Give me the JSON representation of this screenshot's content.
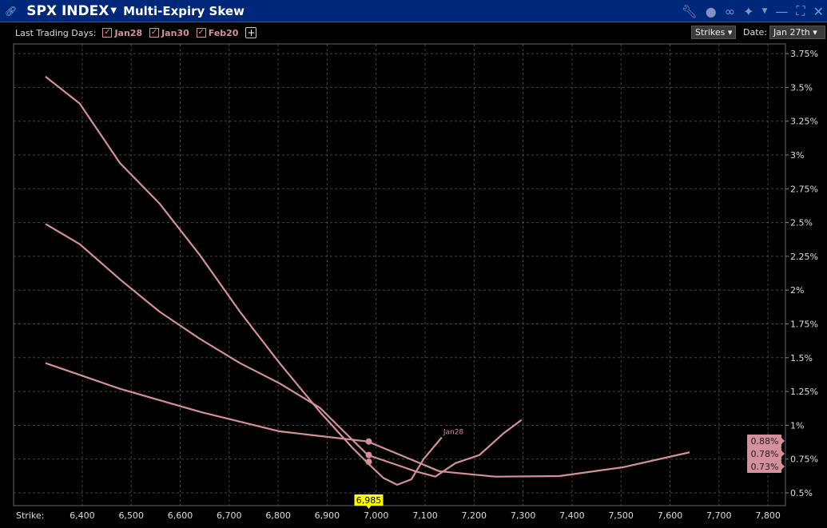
{
  "header": {
    "security": "SPX INDEX",
    "title": "Multi-Expiry Skew"
  },
  "toolbar": {
    "last_trading_days_label": "Last Trading Days:",
    "expiries": [
      "Jan28",
      "Jan30",
      "Feb20"
    ],
    "strikes_button": "Strikes",
    "date_label": "Date:",
    "date_value": "Jan 27th"
  },
  "colors": {
    "titlebar": "#00287a",
    "series": "#d4909c",
    "cursor_label": "#ffff00"
  },
  "icons": [
    "link-icon",
    "wrench-icon",
    "chat-icon",
    "chain-icon",
    "pin-icon",
    "minimize-icon",
    "maximize-icon",
    "close-icon"
  ],
  "chart_data": {
    "type": "line",
    "xlabel": "Strike:",
    "x_ticks": [
      "6,400",
      "6,500",
      "6,600",
      "6,700",
      "6,800",
      "6,900",
      "7,000",
      "7,100",
      "7,200",
      "7,300",
      "7,400",
      "7,500",
      "7,600",
      "7,700",
      "7,800"
    ],
    "y_ticks": [
      "0.5%",
      "0.75%",
      "1%",
      "1.25%",
      "1.5%",
      "1.75%",
      "2%",
      "2.25%",
      "2.5%",
      "2.75%",
      "3%",
      "3.25%",
      "3.5%",
      "3.75%"
    ],
    "xlim": [
      6300,
      7850
    ],
    "ylim": [
      0.4,
      3.85
    ],
    "grid": true,
    "cursor_strike": "6,985",
    "series": [
      {
        "name": "Jan28",
        "label": "Jan28",
        "marker_value": 0.73,
        "marker_label": "0.73%",
        "x": [
          6325,
          6395,
          6477,
          6558,
          6640,
          6722,
          6803,
          6885,
          6950,
          6983,
          7015,
          7043,
          7072,
          7097,
          7134
        ],
        "y": [
          3.58,
          3.38,
          2.94,
          2.64,
          2.26,
          1.84,
          1.46,
          1.1,
          0.84,
          0.72,
          0.61,
          0.56,
          0.6,
          0.75,
          0.91
        ]
      },
      {
        "name": "Jan30",
        "marker_value": 0.78,
        "marker_label": "0.78%",
        "x": [
          6325,
          6395,
          6477,
          6558,
          6640,
          6722,
          6803,
          6885,
          6983,
          7080,
          7121,
          7162,
          7211,
          7260,
          7297
        ],
        "y": [
          2.49,
          2.34,
          2.08,
          1.84,
          1.64,
          1.46,
          1.31,
          1.13,
          0.78,
          0.66,
          0.62,
          0.72,
          0.78,
          0.94,
          1.04
        ]
      },
      {
        "name": "Feb20",
        "marker_value": 0.88,
        "marker_label": "0.88%",
        "x": [
          6325,
          6477,
          6640,
          6803,
          6983,
          7129,
          7243,
          7374,
          7505,
          7640
        ],
        "y": [
          1.46,
          1.27,
          1.1,
          0.955,
          0.88,
          0.66,
          0.62,
          0.624,
          0.69,
          0.8
        ]
      }
    ]
  }
}
